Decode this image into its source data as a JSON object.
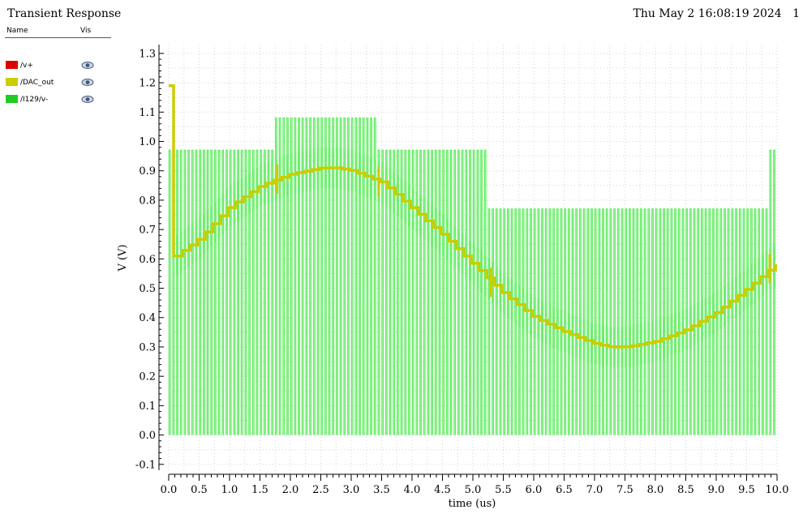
{
  "window": {
    "title": "Transient Response",
    "datestamp": "Thu May 2 16:08:19 2024",
    "page_number": "1"
  },
  "legend": {
    "name_header": "Name",
    "vis_header": "Vis",
    "items": [
      {
        "label": "/v+",
        "color": "#dd0000",
        "icon": "eye-icon"
      },
      {
        "label": "/DAC_out",
        "color": "#cccc00",
        "icon": "eye-icon"
      },
      {
        "label": "/I129/v-",
        "color": "#22cc22",
        "icon": "eye-icon"
      }
    ]
  },
  "chart_data": {
    "type": "line",
    "xlabel": "time (us)",
    "ylabel": "V (V)",
    "xlim": [
      0.0,
      10.0
    ],
    "ylim": [
      -0.12,
      1.33
    ],
    "x_ticks": [
      "0.0",
      "0.5",
      "1.0",
      "1.5",
      "2.0",
      "2.5",
      "3.0",
      "3.5",
      "4.0",
      "4.5",
      "5.0",
      "5.5",
      "6.0",
      "6.5",
      "7.0",
      "7.5",
      "8.0",
      "8.5",
      "9.0",
      "9.5",
      "10.0"
    ],
    "y_ticks": [
      "-0.1",
      "0.0",
      "0.1",
      "0.2",
      "0.3",
      "0.4",
      "0.5",
      "0.6",
      "0.7",
      "0.8",
      "0.9",
      "1.0",
      "1.1",
      "1.2",
      "1.3"
    ],
    "grid": true,
    "series": [
      {
        "name": "/I129/v-",
        "color": "#66ee66",
        "kind": "pwm",
        "period_us": 0.0625,
        "low": 0.0,
        "segments": [
          {
            "x0": 0.0,
            "x1": 1.75,
            "high": 0.97
          },
          {
            "x0": 1.75,
            "x1": 3.42,
            "high": 1.08
          },
          {
            "x0": 3.42,
            "x1": 5.25,
            "high": 0.97
          },
          {
            "x0": 5.25,
            "x1": 9.85,
            "high": 0.77
          },
          {
            "x0": 9.85,
            "x1": 10.0,
            "high": 0.97
          }
        ],
        "envelope_ripple": 0.07
      },
      {
        "name": "/DAC_out",
        "color": "#cccc00",
        "kind": "staircase",
        "step_us": 0.125,
        "x": [
          0.0,
          0.03,
          0.06,
          0.08,
          0.1,
          0.5,
          1.0,
          1.5,
          2.0,
          2.5,
          2.75,
          3.0,
          3.5,
          4.0,
          4.5,
          5.0,
          5.5,
          6.0,
          6.5,
          7.0,
          7.25,
          7.5,
          8.0,
          8.5,
          9.0,
          9.5,
          9.9,
          10.0
        ],
        "y": [
          1.19,
          1.19,
          1.19,
          0.62,
          0.61,
          0.67,
          0.78,
          0.85,
          0.89,
          0.91,
          0.91,
          0.9,
          0.86,
          0.77,
          0.68,
          0.58,
          0.48,
          0.4,
          0.35,
          0.31,
          0.3,
          0.3,
          0.32,
          0.36,
          0.42,
          0.5,
          0.57,
          0.58
        ]
      }
    ]
  }
}
